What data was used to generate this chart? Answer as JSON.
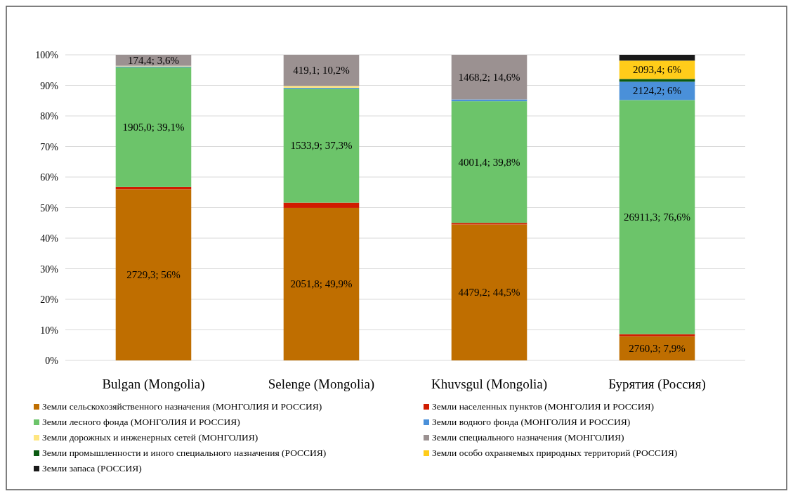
{
  "chart_data": {
    "type": "bar",
    "stacked": true,
    "categories": [
      "Bulgan (Mongolia)",
      "Selenge (Mongolia)",
      "Khuvsgul (Mongolia)",
      "Бурятия (Россия)"
    ],
    "series": [
      {
        "name": "Земли сельскохозяйственного назначения (МОНГОЛИЯ И РОССИЯ)",
        "color": "#bf6e00",
        "values": [
          56,
          49.9,
          44.5,
          7.9
        ],
        "value_labels": [
          "2729,3; 56%",
          "2051,8; 49,9%",
          "4479,2; 44,5%",
          "2760,3; 7,9%"
        ]
      },
      {
        "name": "Земли населенных пунктов (МОНГОЛИЯ И РОССИЯ)",
        "color": "#d01c00",
        "values": [
          0.8,
          1.7,
          0.5,
          0.7
        ]
      },
      {
        "name": "Земли лесного фонда (МОНГОЛИЯ И РОССИЯ)",
        "color": "#6cc46a",
        "values": [
          39.1,
          37.3,
          39.8,
          76.6
        ],
        "value_labels": [
          "1905,0; 39,1%",
          "1533,9; 37,3%",
          "4001,4; 39,8%",
          "26911,3; 76,6%"
        ]
      },
      {
        "name": "Земли водного фонда (МОНГОЛИЯ И РОССИЯ)",
        "color": "#4a90d9",
        "values": [
          0.3,
          0.3,
          0.6,
          6
        ],
        "value_labels": [
          null,
          null,
          null,
          "2124,2; 6%"
        ]
      },
      {
        "name": "Земли дорожных и инженерных сетей (МОНГОЛИЯ)",
        "color": "#ffe680",
        "values": [
          0.2,
          0.6,
          0,
          0
        ]
      },
      {
        "name": "Земли специального назначения (МОНГОЛИЯ)",
        "color": "#9b9191",
        "values": [
          3.6,
          10.2,
          14.6,
          0
        ],
        "value_labels": [
          "174,4; 3,6%",
          "419,1; 10,2%",
          "1468,2; 14,6%",
          null
        ]
      },
      {
        "name": "Земли промышленности и иного специального назначения (РОССИЯ)",
        "color": "#0b5a12",
        "values": [
          0,
          0,
          0,
          0.9
        ]
      },
      {
        "name": "Земли особо охраняемых природных территорий (РОССИЯ)",
        "color": "#ffcc1a",
        "values": [
          0,
          0,
          0,
          6
        ],
        "value_labels": [
          null,
          null,
          null,
          "2093,4; 6%"
        ]
      },
      {
        "name": "Земли запаса (РОССИЯ)",
        "color": "#1a1a1a",
        "values": [
          0,
          0,
          0,
          1.9
        ]
      }
    ],
    "ylim": [
      0,
      100
    ],
    "yticks": [
      {
        "value": 0,
        "label": "0%"
      },
      {
        "value": 10,
        "label": "10%"
      },
      {
        "value": 20,
        "label": "20%"
      },
      {
        "value": 30,
        "label": "30%"
      },
      {
        "value": 40,
        "label": "40%"
      },
      {
        "value": 50,
        "label": "50%"
      },
      {
        "value": 60,
        "label": "60%"
      },
      {
        "value": 70,
        "label": "70%"
      },
      {
        "value": 80,
        "label": "80%"
      },
      {
        "value": 90,
        "label": "90%"
      },
      {
        "value": 100,
        "label": "100%"
      }
    ],
    "grid": "y",
    "legend": "bottom"
  }
}
